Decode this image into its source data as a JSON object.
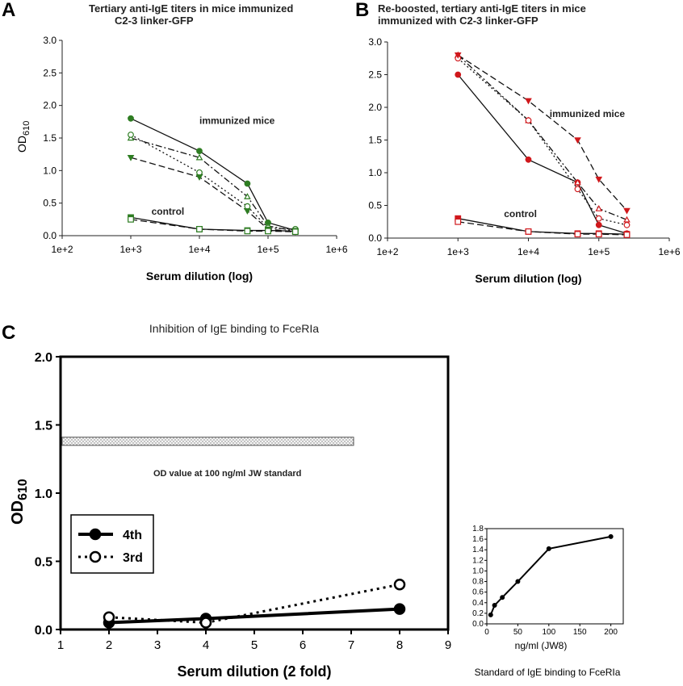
{
  "chart_data": [
    {
      "panel": "A",
      "type": "line",
      "title": "Tertiary anti-IgE titers in mice immunized C2-3 linker-GFP",
      "title_lines": [
        "Tertiary anti-IgE titers in mice immunized",
        "C2-3 linker-GFP"
      ],
      "xlabel": "Serum dilution (log)",
      "ylabel": "OD",
      "ylabel_sub": "610",
      "xscale": "log",
      "xlim": [
        100,
        1000000
      ],
      "ylim": [
        0,
        3
      ],
      "xticks": [
        "1e+2",
        "1e+3",
        "1e+4",
        "1e+5",
        "1e+6"
      ],
      "yticks": [
        "0.0",
        "0.5",
        "1.0",
        "1.5",
        "2.0",
        "2.5",
        "3.0"
      ],
      "color": "#2e7d22",
      "annotations": [
        {
          "text": "immunized mice",
          "x": 10000,
          "y": 1.72
        },
        {
          "text": "control",
          "x": 2000,
          "y": 0.32
        }
      ],
      "series": [
        {
          "x": [
            1000,
            10000,
            50000,
            100000,
            250000
          ],
          "y": [
            1.8,
            1.3,
            0.8,
            0.2,
            0.08
          ],
          "dash": "solid",
          "marker": "filled-circle"
        },
        {
          "x": [
            1000,
            10000,
            50000,
            100000,
            250000
          ],
          "y": [
            1.5,
            1.2,
            0.6,
            0.15,
            0.07
          ],
          "dash": "dashdot",
          "marker": "open-triangle-up"
        },
        {
          "x": [
            1000,
            10000,
            50000,
            100000,
            250000
          ],
          "y": [
            1.55,
            0.97,
            0.45,
            0.12,
            0.1
          ],
          "dash": "dotted",
          "marker": "open-circle"
        },
        {
          "x": [
            1000,
            10000,
            50000,
            100000,
            250000
          ],
          "y": [
            1.2,
            0.9,
            0.38,
            0.1,
            0.06
          ],
          "dash": "dashed",
          "marker": "filled-triangle-down"
        },
        {
          "x": [
            1000,
            10000,
            50000,
            100000,
            250000
          ],
          "y": [
            0.28,
            0.1,
            0.08,
            0.08,
            0.07
          ],
          "dash": "solid",
          "marker": "filled-square"
        },
        {
          "x": [
            1000,
            10000,
            50000,
            100000,
            250000
          ],
          "y": [
            0.25,
            0.1,
            0.07,
            0.07,
            0.06
          ],
          "dash": "dashed",
          "marker": "open-square"
        }
      ]
    },
    {
      "panel": "B",
      "type": "line",
      "title": "Re-boosted, tertiary anti-IgE titers in mice immunized with C2-3 linker-GFP",
      "title_lines": [
        "Re-boosted, tertiary anti-IgE titers in mice",
        "immunized with C2-3 linker-GFP"
      ],
      "xlabel": "Serum dilution (log)",
      "ylabel": "",
      "xscale": "log",
      "xlim": [
        100,
        1000000
      ],
      "ylim": [
        0,
        3
      ],
      "xticks": [
        "1e+2",
        "1e+3",
        "1e+4",
        "1e+5",
        "1e+6"
      ],
      "yticks": [
        "0.0",
        "0.5",
        "1.0",
        "1.5",
        "2.0",
        "2.5",
        "3.0"
      ],
      "color": "#d0181c",
      "annotations": [
        {
          "text": "immunized mice",
          "x": 20000,
          "y": 1.85
        },
        {
          "text": "control",
          "x": 4500,
          "y": 0.32
        }
      ],
      "series": [
        {
          "x": [
            1000,
            10000,
            50000,
            100000,
            250000
          ],
          "y": [
            2.5,
            1.2,
            0.85,
            0.2,
            0.07
          ],
          "dash": "solid",
          "marker": "filled-circle"
        },
        {
          "x": [
            1000,
            10000,
            50000,
            100000,
            250000
          ],
          "y": [
            2.8,
            1.8,
            0.85,
            0.45,
            0.28
          ],
          "dash": "dashdot",
          "marker": "open-triangle-up"
        },
        {
          "x": [
            1000,
            10000,
            50000,
            100000,
            250000
          ],
          "y": [
            2.75,
            1.8,
            0.75,
            0.3,
            0.2
          ],
          "dash": "dotted",
          "marker": "open-circle"
        },
        {
          "x": [
            1000,
            10000,
            50000,
            100000,
            250000
          ],
          "y": [
            2.8,
            2.1,
            1.5,
            0.9,
            0.42
          ],
          "dash": "dashed",
          "marker": "filled-triangle-down"
        },
        {
          "x": [
            1000,
            10000,
            50000,
            100000,
            250000
          ],
          "y": [
            0.3,
            0.1,
            0.07,
            0.07,
            0.06
          ],
          "dash": "solid",
          "marker": "filled-square"
        },
        {
          "x": [
            1000,
            10000,
            50000,
            100000,
            250000
          ],
          "y": [
            0.25,
            0.1,
            0.06,
            0.06,
            0.05
          ],
          "dash": "dashed",
          "marker": "open-square"
        }
      ]
    },
    {
      "panel": "C",
      "type": "line",
      "title": "Inhibition of IgE binding to FceRIa",
      "xlabel": "Serum dilution (2 fold)",
      "ylabel": "OD",
      "ylabel_sub": "610",
      "xlim": [
        1,
        9
      ],
      "ylim": [
        0,
        2
      ],
      "xticks": [
        "1",
        "2",
        "3",
        "4",
        "5",
        "6",
        "7",
        "8",
        "9"
      ],
      "yticks": [
        "0.0",
        "0.5",
        "1.0",
        "1.5",
        "2.0"
      ],
      "reference_band": {
        "ymin": 1.35,
        "ymax": 1.41,
        "xmin": 1.0,
        "xmax": 7.05,
        "label": "OD value at 100 ng/ml JW standard"
      },
      "legend_position": "left",
      "series": [
        {
          "name": "4th",
          "x": [
            2,
            4,
            8
          ],
          "y": [
            0.05,
            0.08,
            0.15
          ],
          "dash": "solid",
          "marker": "filled-circle"
        },
        {
          "name": "3rd",
          "x": [
            2,
            4,
            8
          ],
          "y": [
            0.09,
            0.05,
            0.33
          ],
          "dash": "dotted",
          "marker": "open-circle"
        }
      ]
    },
    {
      "panel": "inset",
      "type": "line",
      "title": "Standard of IgE binding to FceRIa",
      "xlabel": "ng/ml (JW8)",
      "ylabel": "",
      "xlim": [
        0,
        220
      ],
      "ylim": [
        0,
        1.8
      ],
      "xticks": [
        "0",
        "50",
        "100",
        "150",
        "200"
      ],
      "yticks": [
        "0.0",
        "0.2",
        "0.4",
        "0.6",
        "0.8",
        "1.0",
        "1.2",
        "1.4",
        "1.6",
        "1.8"
      ],
      "series": [
        {
          "x": [
            6.25,
            12.5,
            25,
            50,
            100,
            200
          ],
          "y": [
            0.17,
            0.35,
            0.5,
            0.8,
            1.42,
            1.65
          ],
          "dash": "solid",
          "marker": "filled-circle"
        }
      ]
    }
  ],
  "panel_labels": {
    "a": "A",
    "b": "B",
    "c": "C"
  }
}
